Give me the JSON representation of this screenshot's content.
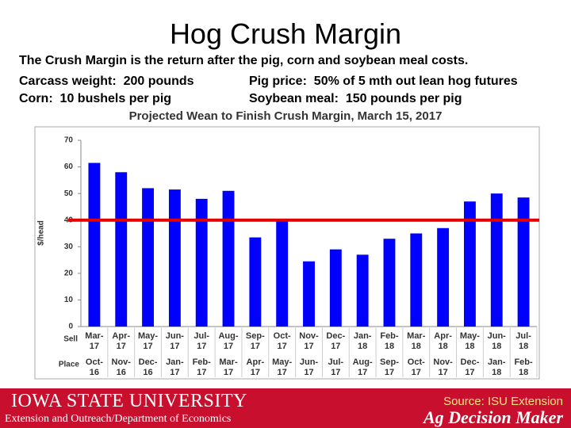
{
  "header": {
    "title": "Hog Crush Margin",
    "notes": [
      "The Crush Margin is the return after the pig, corn and soybean meal costs.",
      "Carcass weight:  200 pounds",
      "Pig price:  50% of 5 mth out lean hog futures",
      "Corn:  10 bushels per pig",
      "Soybean meal:  150 pounds per pig"
    ]
  },
  "chart_data": {
    "type": "bar",
    "title": "Projected Wean to Finish Crush Margin, March 15, 2017",
    "ylabel": "$/head",
    "sell_label": "Sell",
    "place_label": "Place",
    "categories": [
      "Mar-17",
      "Apr-17",
      "May-17",
      "Jun-17",
      "Jul-17",
      "Aug-17",
      "Sep-17",
      "Oct-17",
      "Nov-17",
      "Dec-17",
      "Jan-18",
      "Feb-18",
      "Mar-18",
      "Apr-18",
      "May-18",
      "Jun-18",
      "Jul-18"
    ],
    "place_categories": [
      "Oct-16",
      "Nov-16",
      "Dec-16",
      "Jan-17",
      "Feb-17",
      "Mar-17",
      "Apr-17",
      "May-17",
      "Jun-17",
      "Jul-17",
      "Aug-17",
      "Sep-17",
      "Oct-17",
      "Nov-17",
      "Dec-17",
      "Jan-18",
      "Feb-18"
    ],
    "values": [
      61.5,
      58,
      52,
      51.5,
      48,
      51,
      33.5,
      40,
      24.5,
      29,
      27,
      33,
      35,
      37,
      47,
      50,
      48.5
    ],
    "color": "#0000ff",
    "reference_line": 40,
    "reference_color": "#e00000",
    "ylim": [
      0,
      70
    ],
    "yticks": [
      0,
      10,
      20,
      30,
      40,
      50,
      60,
      70
    ],
    "grid": false
  },
  "footer": {
    "university": "IOWA STATE UNIVERSITY",
    "department": "Extension and Outreach/Department of Economics",
    "source": "Source: ISU Extension",
    "brand": "Ag Decision Maker"
  }
}
